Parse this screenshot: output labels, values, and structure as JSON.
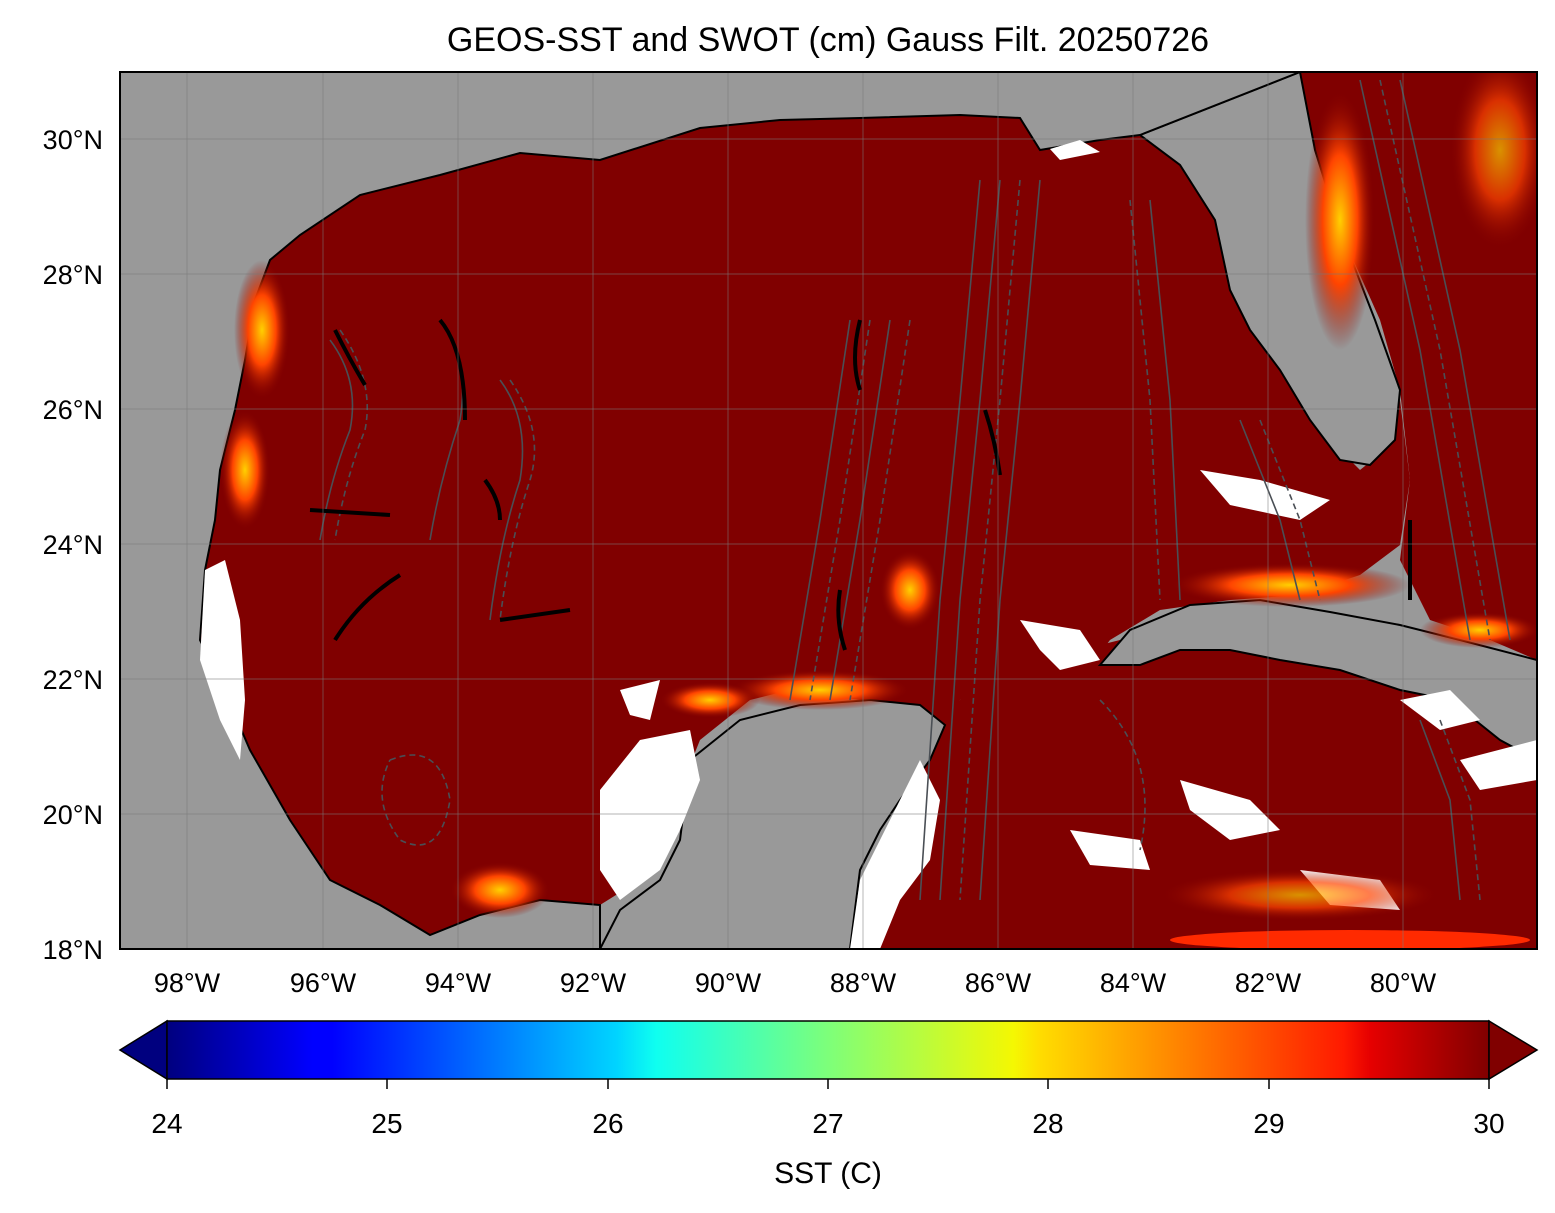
{
  "title": "GEOS-SST  and SWOT (cm) Gauss Filt. 20250726",
  "map": {
    "lat_ticks": [
      "30°N",
      "28°N",
      "26°N",
      "24°N",
      "22°N",
      "20°N",
      "18°N"
    ],
    "lon_ticks": [
      "98°W",
      "96°W",
      "94°W",
      "92°W",
      "90°W",
      "88°W",
      "86°W",
      "84°W",
      "82°W",
      "80°W"
    ],
    "colors": {
      "land": "#999999",
      "ocean_warm": "#800000",
      "no_data": "#ffffff",
      "contour": "#4a4f55",
      "grid": "#7a7a7a"
    }
  },
  "colorbar": {
    "label": "SST (C)",
    "ticks": [
      "24",
      "25",
      "26",
      "27",
      "28",
      "29",
      "30"
    ],
    "min": 24,
    "max": 30,
    "extend": "both",
    "colormap": "jet"
  }
}
